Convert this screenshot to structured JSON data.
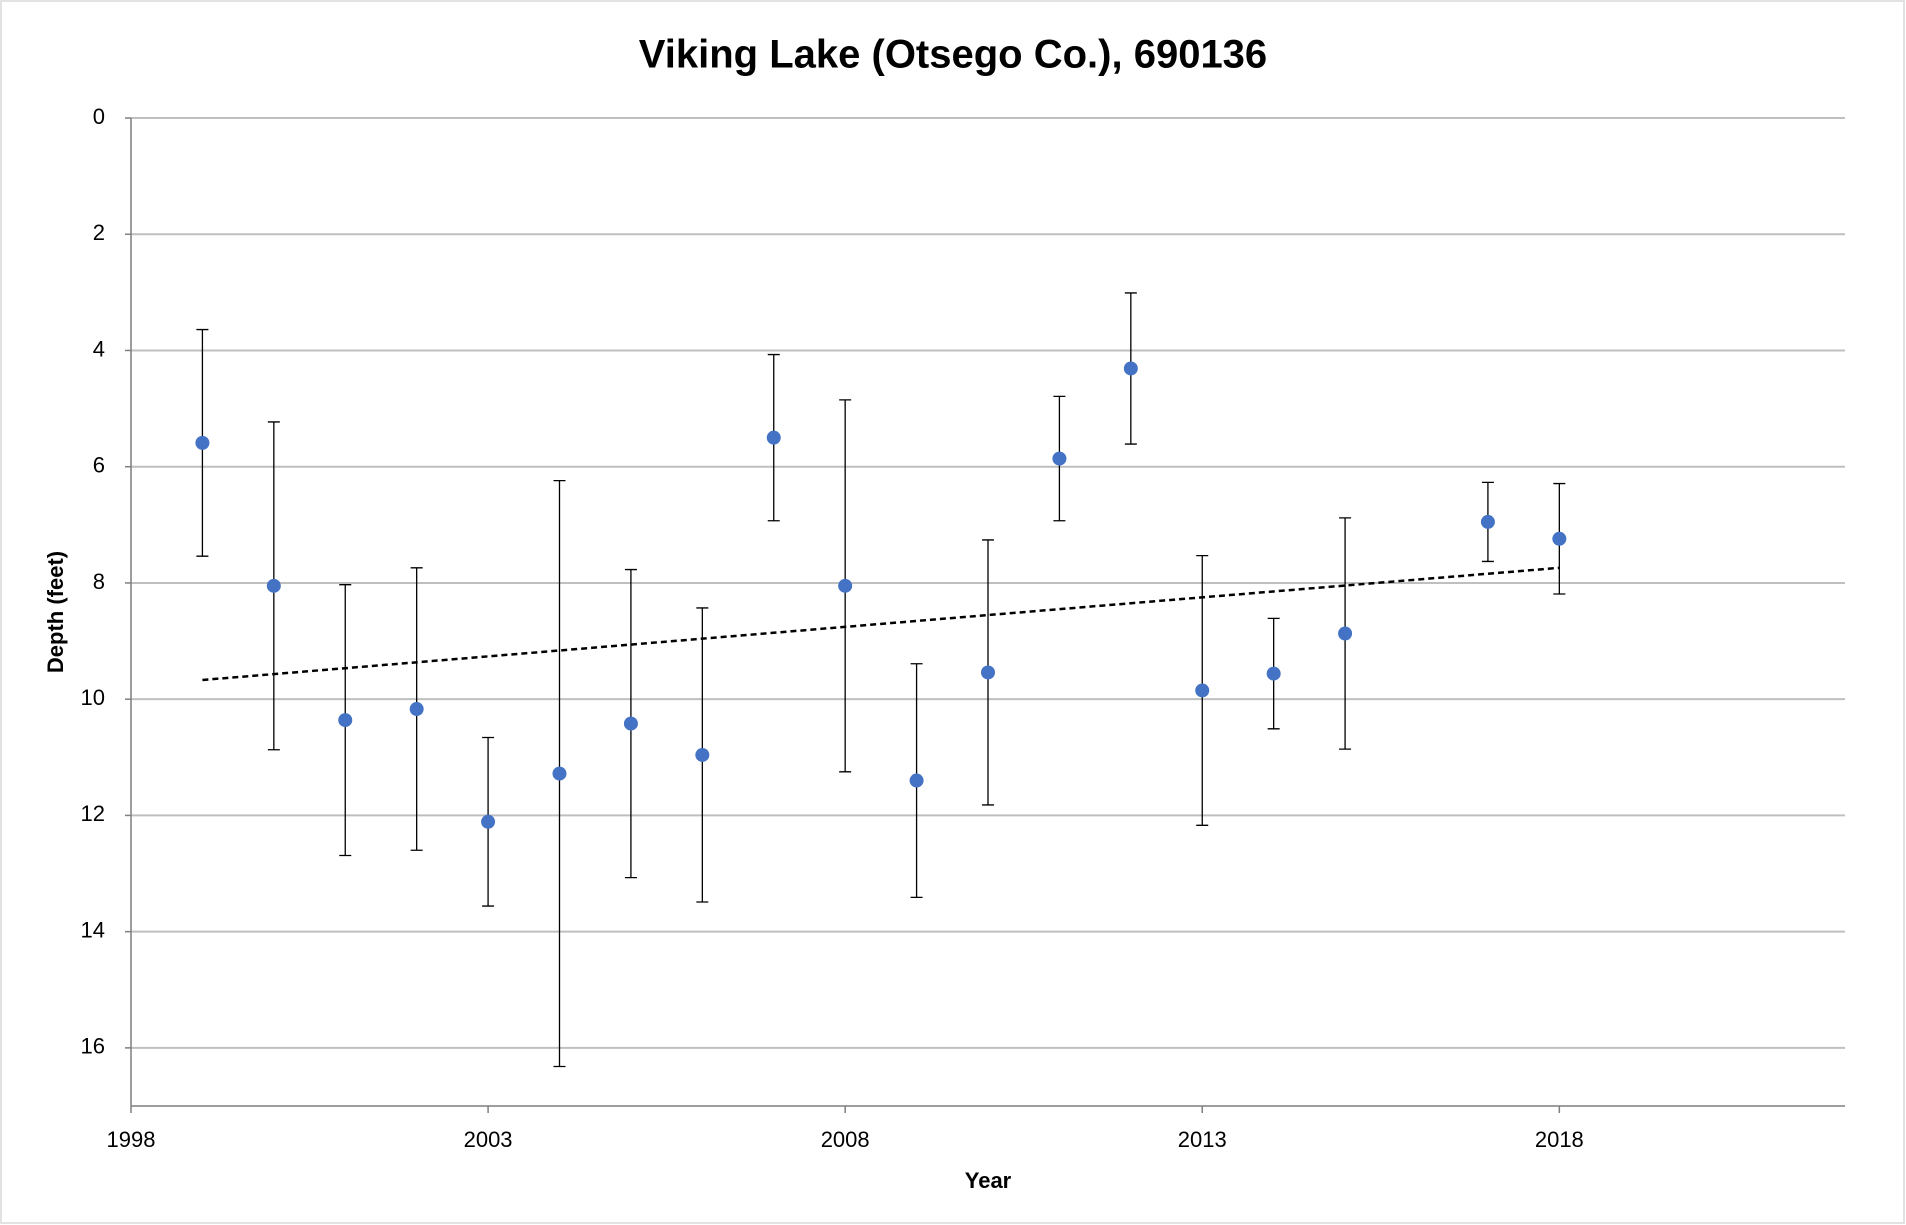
{
  "chart_data": {
    "type": "scatter",
    "title": "Viking Lake (Otsego Co.), 690136",
    "x_label": "Year",
    "y_label": "Depth (feet)",
    "xlim": [
      1998,
      2022
    ],
    "xticks": [
      1998,
      2003,
      2008,
      2013,
      2018
    ],
    "ylim": [
      0,
      17
    ],
    "yticks": [
      0,
      2,
      4,
      6,
      8,
      10,
      12,
      14,
      16
    ],
    "y_reversed": true,
    "grid": true,
    "series": [
      {
        "color": "#4472c4",
        "x": [
          1999,
          2000,
          2001,
          2002,
          2003,
          2004,
          2005,
          2006,
          2007,
          2008,
          2009,
          2010,
          2011,
          2012,
          2013,
          2014,
          2015,
          2017,
          2018
        ],
        "values": [
          5.59,
          8.05,
          10.36,
          10.17,
          12.11,
          11.28,
          10.42,
          10.96,
          5.5,
          8.05,
          11.4,
          9.54,
          5.86,
          4.31,
          9.85,
          9.56,
          8.87,
          6.95,
          7.24
        ],
        "errors": [
          1.95,
          2.82,
          2.33,
          2.43,
          1.45,
          5.04,
          2.65,
          2.53,
          1.43,
          3.2,
          2.01,
          2.28,
          1.07,
          1.3,
          2.32,
          0.95,
          1.99,
          0.68,
          0.95
        ]
      }
    ],
    "trendline": {
      "color": "#000000",
      "x": [
        1999,
        2018
      ],
      "values": [
        9.67,
        7.74
      ]
    }
  }
}
